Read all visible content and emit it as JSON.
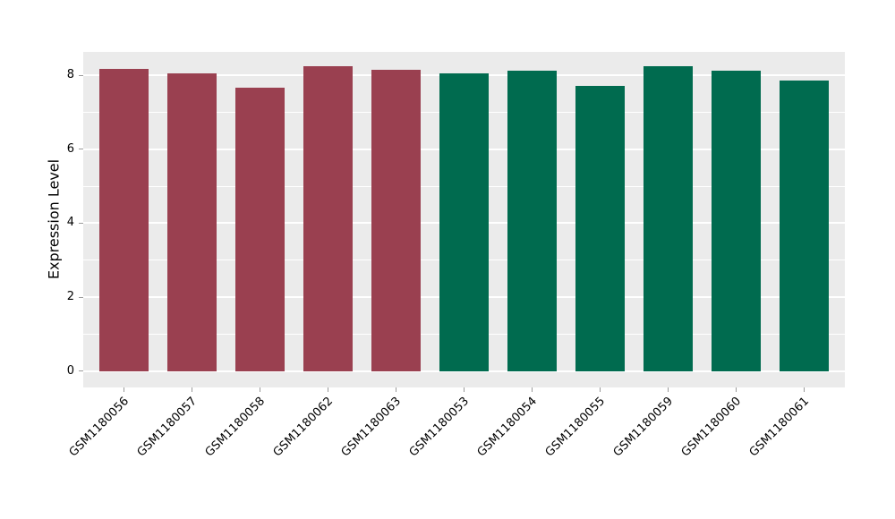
{
  "chart_data": {
    "type": "bar",
    "title": "",
    "xlabel": "",
    "ylabel": "Expression Level",
    "categories": [
      "GSM1180056",
      "GSM1180057",
      "GSM1180058",
      "GSM1180062",
      "GSM1180063",
      "GSM1180053",
      "GSM1180054",
      "GSM1180055",
      "GSM1180059",
      "GSM1180060",
      "GSM1180061"
    ],
    "values": [
      8.16,
      8.05,
      7.66,
      8.24,
      8.15,
      8.04,
      8.12,
      7.71,
      8.25,
      8.12,
      7.86
    ],
    "groups": [
      0,
      0,
      0,
      0,
      0,
      1,
      1,
      1,
      1,
      1,
      1
    ],
    "group_colors": [
      "#9A4050",
      "#006B4F"
    ],
    "yticks": [
      0,
      2,
      4,
      6,
      8
    ],
    "yticks_minor": [
      1,
      3,
      5,
      7
    ],
    "ylim": [
      -0.44,
      8.63
    ],
    "grid": true,
    "legend": "none",
    "plot_background": "#EBEBEB",
    "grid_color": "#FFFFFF",
    "bar_width_fraction": 0.72
  }
}
